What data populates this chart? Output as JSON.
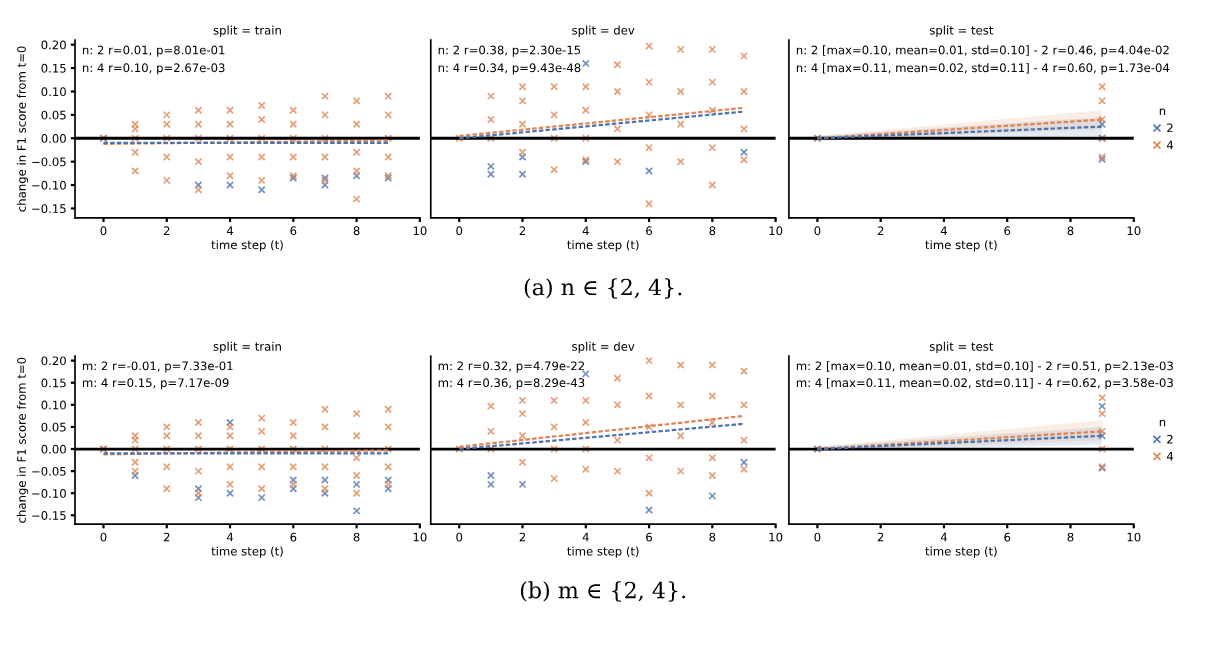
{
  "chart_data": [
    {
      "type": "scatter",
      "title": "split = train",
      "xlabel": "time step (t)",
      "ylabel": "change in F1 score from t=0",
      "xlim": [
        -0.9,
        10
      ],
      "xticks": [
        0,
        2,
        4,
        6,
        8,
        10
      ],
      "ylim": [
        -0.17,
        0.21
      ],
      "yticks": [
        {
          "value": -0.15,
          "label": "−0.15"
        },
        {
          "value": -0.1,
          "label": "−0.10"
        },
        {
          "value": -0.05,
          "label": "−0.05"
        },
        {
          "value": 0,
          "label": "0.00"
        },
        {
          "value": 0.05,
          "label": "0.05"
        },
        {
          "value": 0.1,
          "label": "0.10"
        },
        {
          "value": 0.15,
          "label": "0.15"
        },
        {
          "value": 0.2,
          "label": "0.20"
        }
      ],
      "marker": "cross",
      "grid": false,
      "ref_lines": [
        {
          "axis": "y",
          "value": 0,
          "color": "#000000"
        }
      ],
      "annotations": [
        "n: 2 r=0.01, p=8.01e-01",
        "n: 4 r=0.10, p=2.67e-03"
      ],
      "series": [
        {
          "color": "#4c72b0",
          "x": [
            0,
            3,
            4,
            5,
            6,
            7,
            7,
            8,
            9
          ],
          "values": [
            0,
            -0.1,
            -0.1,
            -0.11,
            -0.085,
            -0.085,
            -0.1,
            -0.08,
            -0.085
          ]
        },
        {
          "color": "#dd8452",
          "x": [
            0,
            1,
            1,
            1,
            1,
            1,
            2,
            2,
            2,
            2,
            2,
            3,
            3,
            3,
            3,
            3,
            4,
            4,
            4,
            4,
            4,
            5,
            5,
            5,
            5,
            5,
            6,
            6,
            6,
            6,
            6,
            7,
            7,
            7,
            7,
            7,
            8,
            8,
            8,
            8,
            8,
            9,
            9,
            9,
            9,
            9
          ],
          "values": [
            0,
            -0.07,
            -0.03,
            0,
            0.02,
            0.03,
            -0.09,
            -0.04,
            0,
            0.03,
            0.05,
            -0.11,
            -0.05,
            0,
            0.03,
            0.06,
            -0.08,
            -0.04,
            0,
            0.03,
            0.06,
            -0.09,
            -0.04,
            0,
            0.04,
            0.07,
            -0.08,
            -0.04,
            0,
            0.03,
            0.06,
            -0.09,
            -0.04,
            0,
            0.05,
            0.09,
            -0.13,
            -0.07,
            -0.03,
            0.03,
            0.08,
            -0.08,
            -0.04,
            0,
            0.05,
            0.09
          ]
        },
        {
          "type": "line",
          "marker": "none",
          "line_style": "dashed",
          "color": "#4c72b0",
          "x": [
            0,
            9
          ],
          "values": [
            -0.01,
            -0.01
          ]
        },
        {
          "type": "line",
          "marker": "none",
          "line_style": "dashed",
          "color": "#dd8452",
          "x": [
            0,
            9
          ],
          "values": [
            -0.012,
            -0.005
          ]
        }
      ]
    },
    {
      "type": "scatter",
      "title": "split = dev",
      "xlabel": "time step (t)",
      "xlim": [
        -0.9,
        10
      ],
      "xticks": [
        0,
        2,
        4,
        6,
        8,
        10
      ],
      "ylim": [
        -0.17,
        0.21
      ],
      "yticks": [
        {
          "value": -0.15,
          "label": null
        },
        {
          "value": -0.1,
          "label": null
        },
        {
          "value": -0.05,
          "label": null
        },
        {
          "value": 0,
          "label": null
        },
        {
          "value": 0.05,
          "label": null
        },
        {
          "value": 0.1,
          "label": null
        },
        {
          "value": 0.15,
          "label": null
        },
        {
          "value": 0.2,
          "label": null
        }
      ],
      "tick_labels": "x",
      "marker": "cross",
      "grid": false,
      "ref_lines": [
        {
          "axis": "y",
          "value": 0,
          "color": "#000000"
        }
      ],
      "annotations": [
        "n: 2 r=0.38, p=2.30e-15",
        "n: 4 r=0.34, p=9.43e-48",
        "(a) n ∈ {2, 4}."
      ],
      "series": [
        {
          "color": "#4c72b0",
          "x": [
            1,
            1,
            2,
            2,
            4,
            4,
            6,
            9
          ],
          "values": [
            -0.06,
            -0.077,
            -0.04,
            -0.077,
            0.16,
            -0.05,
            -0.07,
            -0.03
          ]
        },
        {
          "color": "#dd8452",
          "x": [
            0,
            1,
            1,
            1,
            2,
            2,
            2,
            2,
            3,
            3,
            3,
            3,
            4,
            4,
            4,
            4,
            5,
            5,
            5,
            5,
            6,
            6,
            6,
            6,
            6,
            7,
            7,
            7,
            7,
            8,
            8,
            8,
            8,
            8,
            9,
            9,
            9,
            9
          ],
          "values": [
            0,
            0,
            0.04,
            0.09,
            -0.03,
            0.03,
            0.08,
            0.11,
            -0.067,
            0,
            0.05,
            0.11,
            -0.046,
            0,
            0.06,
            0.11,
            -0.05,
            0.02,
            0.1,
            0.157,
            -0.14,
            -0.02,
            0.05,
            0.12,
            0.197,
            -0.05,
            0.03,
            0.1,
            0.19,
            -0.1,
            -0.02,
            0.06,
            0.12,
            0.19,
            -0.046,
            0.02,
            0.1,
            0.176
          ]
        },
        {
          "type": "line",
          "marker": "none",
          "line_style": "dashed",
          "color": "#4c72b0",
          "x": [
            0,
            9
          ],
          "values": [
            0,
            0.057
          ]
        },
        {
          "type": "line",
          "marker": "none",
          "line_style": "dashed",
          "color": "#dd8452",
          "x": [
            0,
            9
          ],
          "values": [
            0.005,
            0.065
          ]
        }
      ]
    },
    {
      "type": "scatter",
      "title": "split = test",
      "xlabel": "time step (t)",
      "xlim": [
        -0.9,
        10
      ],
      "xticks": [
        0,
        2,
        4,
        6,
        8,
        10
      ],
      "ylim": [
        -0.17,
        0.21
      ],
      "yticks": [
        {
          "value": -0.15,
          "label": null
        },
        {
          "value": -0.1,
          "label": null
        },
        {
          "value": -0.05,
          "label": null
        },
        {
          "value": 0,
          "label": null
        },
        {
          "value": 0.05,
          "label": null
        },
        {
          "value": 0.1,
          "label": null
        },
        {
          "value": 0.15,
          "label": null
        },
        {
          "value": 0.2,
          "label": null
        }
      ],
      "tick_labels": "x",
      "marker": "cross",
      "grid": false,
      "legend": "right",
      "legend_title": "n",
      "ref_lines": [
        {
          "axis": "y",
          "value": 0,
          "color": "#000000"
        }
      ],
      "annotations": [
        "n: 2 [max=0.10, mean=0.01, std=0.10] - 2 r=0.46, p=4.04e-02",
        "n: 4 [max=0.11, mean=0.02, std=0.11] - 4 r=0.60, p=1.73e-04"
      ],
      "series": [
        {
          "name": "2",
          "color": "#4c72b0",
          "x": [
            0,
            9,
            9,
            9
          ],
          "values": [
            0,
            0.03,
            0,
            -0.045
          ]
        },
        {
          "name": "4",
          "color": "#dd8452",
          "x": [
            0,
            9,
            9,
            9,
            9,
            9
          ],
          "values": [
            0,
            0.11,
            0.08,
            0.04,
            0,
            -0.04
          ]
        },
        {
          "type": "line",
          "marker": "none",
          "line_style": "dashed",
          "color": "#4c72b0",
          "x": [
            0,
            9
          ],
          "values": [
            0,
            0.025
          ],
          "lower": [
            -0.005,
            0.005
          ],
          "upper": [
            0.005,
            0.045
          ]
        },
        {
          "type": "line",
          "marker": "none",
          "line_style": "dashed",
          "color": "#dd8452",
          "x": [
            0,
            9
          ],
          "values": [
            0,
            0.04
          ],
          "lower": [
            -0.005,
            0.02
          ],
          "upper": [
            0.005,
            0.06
          ]
        }
      ]
    },
    {
      "type": "scatter",
      "title": "split = train",
      "xlabel": "time step (t)",
      "ylabel": "change in F1 score from t=0",
      "xlim": [
        -0.9,
        10
      ],
      "xticks": [
        0,
        2,
        4,
        6,
        8,
        10
      ],
      "ylim": [
        -0.17,
        0.21
      ],
      "yticks": [
        {
          "value": -0.15,
          "label": "−0.15"
        },
        {
          "value": -0.1,
          "label": "−0.10"
        },
        {
          "value": -0.05,
          "label": "−0.05"
        },
        {
          "value": 0,
          "label": "0.00"
        },
        {
          "value": 0.05,
          "label": "0.05"
        },
        {
          "value": 0.1,
          "label": "0.10"
        },
        {
          "value": 0.15,
          "label": "0.15"
        },
        {
          "value": 0.2,
          "label": "0.20"
        }
      ],
      "marker": "cross",
      "grid": false,
      "ref_lines": [
        {
          "axis": "y",
          "value": 0,
          "color": "#000000"
        }
      ],
      "annotations": [
        "m: 2 r=-0.01, p=7.33e-01",
        "m: 4 r=0.15, p=7.17e-09"
      ],
      "series": [
        {
          "color": "#4c72b0",
          "x": [
            0,
            1,
            3,
            3,
            4,
            4,
            5,
            6,
            6,
            7,
            7,
            8,
            8,
            9,
            9
          ],
          "values": [
            0,
            -0.06,
            -0.11,
            -0.09,
            0.06,
            -0.1,
            -0.11,
            -0.09,
            -0.07,
            -0.1,
            -0.07,
            -0.14,
            -0.08,
            -0.09,
            -0.07
          ]
        },
        {
          "color": "#dd8452",
          "x": [
            0,
            1,
            1,
            1,
            1,
            1,
            2,
            2,
            2,
            2,
            2,
            3,
            3,
            3,
            3,
            3,
            4,
            4,
            4,
            4,
            4,
            5,
            5,
            5,
            5,
            5,
            6,
            6,
            6,
            6,
            6,
            7,
            7,
            7,
            7,
            7,
            8,
            8,
            8,
            8,
            8,
            9,
            9,
            9,
            9,
            9
          ],
          "values": [
            0,
            -0.05,
            -0.03,
            0,
            0.02,
            0.03,
            -0.09,
            -0.04,
            0,
            0.03,
            0.05,
            -0.1,
            -0.05,
            0,
            0.03,
            0.06,
            -0.08,
            -0.04,
            0,
            0.03,
            0.05,
            -0.09,
            -0.04,
            0,
            0.04,
            0.07,
            -0.08,
            -0.04,
            0,
            0.03,
            0.06,
            -0.09,
            -0.04,
            0,
            0.05,
            0.09,
            -0.1,
            -0.06,
            -0.02,
            0.03,
            0.08,
            -0.08,
            -0.04,
            0,
            0.05,
            0.09
          ]
        },
        {
          "type": "line",
          "marker": "none",
          "line_style": "dashed",
          "color": "#4c72b0",
          "x": [
            0,
            9
          ],
          "values": [
            -0.01,
            -0.01
          ]
        },
        {
          "type": "line",
          "marker": "none",
          "line_style": "dashed",
          "color": "#dd8452",
          "x": [
            0,
            9
          ],
          "values": [
            -0.012,
            -0.003
          ]
        }
      ]
    },
    {
      "type": "scatter",
      "title": "split = dev",
      "xlabel": "time step (t)",
      "xlim": [
        -0.9,
        10
      ],
      "xticks": [
        0,
        2,
        4,
        6,
        8,
        10
      ],
      "ylim": [
        -0.17,
        0.21
      ],
      "yticks": [
        {
          "value": -0.15,
          "label": null
        },
        {
          "value": -0.1,
          "label": null
        },
        {
          "value": -0.05,
          "label": null
        },
        {
          "value": 0,
          "label": null
        },
        {
          "value": 0.05,
          "label": null
        },
        {
          "value": 0.1,
          "label": null
        },
        {
          "value": 0.15,
          "label": null
        },
        {
          "value": 0.2,
          "label": null
        }
      ],
      "tick_labels": "x",
      "marker": "cross",
      "grid": false,
      "ref_lines": [
        {
          "axis": "y",
          "value": 0,
          "color": "#000000"
        }
      ],
      "annotations": [
        "m: 2 r=0.32, p=4.79e-22",
        "m: 4 r=0.36, p=8.29e-43",
        "(b) m ∈ {2, 4}."
      ],
      "series": [
        {
          "color": "#4c72b0",
          "x": [
            1,
            1,
            2,
            4,
            6,
            8,
            9
          ],
          "values": [
            -0.06,
            -0.08,
            -0.08,
            0.17,
            -0.138,
            -0.106,
            -0.03
          ]
        },
        {
          "color": "#dd8452",
          "x": [
            0,
            1,
            1,
            1,
            2,
            2,
            2,
            2,
            3,
            3,
            3,
            3,
            4,
            4,
            4,
            4,
            5,
            5,
            5,
            5,
            6,
            6,
            6,
            6,
            6,
            7,
            7,
            7,
            7,
            8,
            8,
            8,
            8,
            8,
            9,
            9,
            9,
            9
          ],
          "values": [
            0,
            0,
            0.04,
            0.097,
            -0.03,
            0.03,
            0.08,
            0.11,
            -0.067,
            0,
            0.05,
            0.11,
            -0.046,
            0,
            0.06,
            0.11,
            -0.05,
            0.02,
            0.1,
            0.16,
            -0.1,
            -0.02,
            0.05,
            0.12,
            0.2,
            -0.05,
            0.03,
            0.1,
            0.19,
            -0.06,
            -0.02,
            0.06,
            0.12,
            0.19,
            -0.046,
            0.02,
            0.1,
            0.176
          ]
        },
        {
          "type": "line",
          "marker": "none",
          "line_style": "dashed",
          "color": "#4c72b0",
          "x": [
            0,
            9
          ],
          "values": [
            0,
            0.057
          ]
        },
        {
          "type": "line",
          "marker": "none",
          "line_style": "dashed",
          "color": "#dd8452",
          "x": [
            0,
            9
          ],
          "values": [
            0.005,
            0.075
          ]
        }
      ]
    },
    {
      "type": "scatter",
      "title": "split = test",
      "xlabel": "time step (t)",
      "xlim": [
        -0.9,
        10
      ],
      "xticks": [
        0,
        2,
        4,
        6,
        8,
        10
      ],
      "ylim": [
        -0.17,
        0.21
      ],
      "yticks": [
        {
          "value": -0.15,
          "label": null
        },
        {
          "value": -0.1,
          "label": null
        },
        {
          "value": -0.05,
          "label": null
        },
        {
          "value": 0,
          "label": null
        },
        {
          "value": 0.05,
          "label": null
        },
        {
          "value": 0.1,
          "label": null
        },
        {
          "value": 0.15,
          "label": null
        },
        {
          "value": 0.2,
          "label": null
        }
      ],
      "tick_labels": "x",
      "marker": "cross",
      "grid": false,
      "legend": "right",
      "legend_title": "n",
      "ref_lines": [
        {
          "axis": "y",
          "value": 0,
          "color": "#000000"
        }
      ],
      "annotations": [
        "m: 2 [max=0.10, mean=0.01, std=0.10] - 2 r=0.51, p=2.13e-03",
        "m: 4 [max=0.11, mean=0.02, std=0.11] - 4 r=0.62, p=3.58e-03"
      ],
      "series": [
        {
          "name": "2",
          "color": "#4c72b0",
          "x": [
            0,
            9,
            9,
            9
          ],
          "values": [
            0,
            0.097,
            0.03,
            -0.043
          ]
        },
        {
          "name": "4",
          "color": "#dd8452",
          "x": [
            0,
            9,
            9,
            9,
            9,
            9
          ],
          "values": [
            0,
            0.116,
            0.08,
            0.04,
            0,
            -0.04
          ]
        },
        {
          "type": "line",
          "marker": "none",
          "line_style": "dashed",
          "color": "#4c72b0",
          "x": [
            0,
            9
          ],
          "values": [
            0,
            0.03
          ],
          "lower": [
            -0.005,
            0.01
          ],
          "upper": [
            0.005,
            0.05
          ]
        },
        {
          "type": "line",
          "marker": "none",
          "line_style": "dashed",
          "color": "#dd8452",
          "x": [
            0,
            9
          ],
          "values": [
            0,
            0.04
          ],
          "lower": [
            -0.005,
            0.02
          ],
          "upper": [
            0.005,
            0.065
          ]
        }
      ]
    }
  ]
}
